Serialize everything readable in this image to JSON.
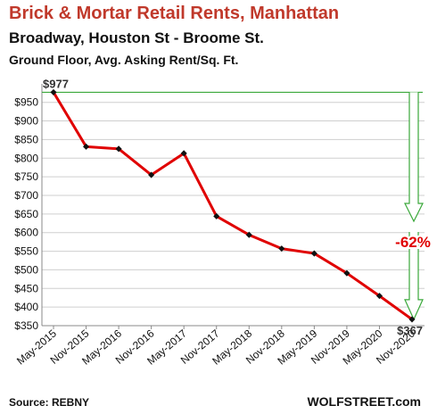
{
  "header": {
    "title": "Brick & Mortar Retail Rents, Manhattan",
    "subtitle": "Broadway, Houston St - Broome St.",
    "subtitle2": "Ground Floor, Avg. Asking Rent/Sq. Ft."
  },
  "footer": {
    "source": "Source: REBNY",
    "brand": "WOLFSTREET.com"
  },
  "chart_data": {
    "type": "line",
    "categories": [
      "May-2015",
      "Nov-2015",
      "May-2016",
      "Nov-2016",
      "May-2017",
      "Nov-2017",
      "May-2018",
      "Nov-2018",
      "May-2019",
      "Nov-2019",
      "May-2020",
      "Nov-2020"
    ],
    "values": [
      977,
      831,
      825,
      755,
      813,
      644,
      594,
      557,
      544,
      491,
      430,
      367
    ],
    "ylim": [
      350,
      990
    ],
    "yticks": [
      350,
      400,
      450,
      500,
      550,
      600,
      650,
      700,
      750,
      800,
      850,
      900,
      950
    ],
    "ytick_labels": [
      "$350",
      "$400",
      "$450",
      "$500",
      "$550",
      "$600",
      "$650",
      "$700",
      "$750",
      "$800",
      "$850",
      "$900",
      "$950"
    ],
    "grid": true,
    "line_color": "#e00000",
    "annotation_color": "#3aa83a",
    "annotations": {
      "start_label": "$977",
      "end_label": "$367",
      "change_label": "-62%"
    }
  }
}
